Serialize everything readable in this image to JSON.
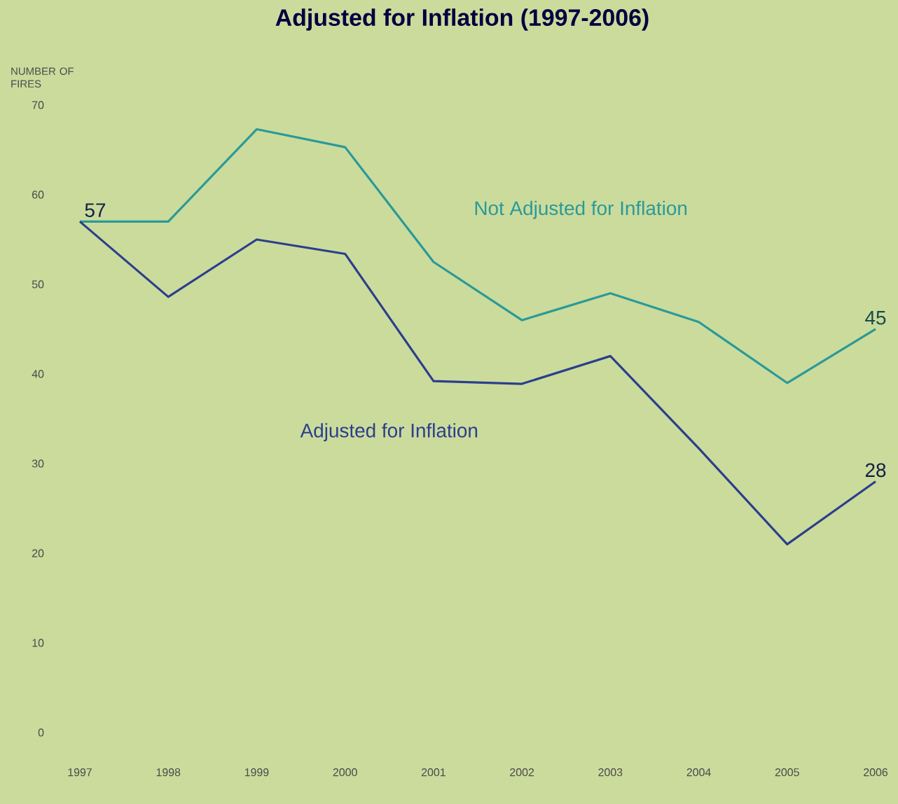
{
  "chart_data": {
    "type": "line",
    "title": "Adjusted for Inflation (1997-2006)",
    "ylabel": "NUMBER OF FIRES",
    "x": [
      1997,
      1998,
      1999,
      2000,
      2001,
      2002,
      2003,
      2004,
      2005,
      2006
    ],
    "series": [
      {
        "name": "Not Adjusted for Inflation",
        "color": "#2a9a98",
        "values": [
          57,
          57,
          67.3,
          65.3,
          52.5,
          46,
          49,
          45.8,
          39,
          45
        ],
        "value_labels": [
          null,
          null,
          null,
          null,
          null,
          null,
          null,
          null,
          null,
          "45"
        ]
      },
      {
        "name": "Adjusted for Inflation",
        "color": "#2b3f8c",
        "values": [
          57,
          48.6,
          55,
          53.4,
          39.2,
          38.9,
          42,
          31.7,
          21,
          28
        ],
        "value_labels": [
          "57",
          null,
          null,
          null,
          null,
          null,
          null,
          null,
          null,
          "28"
        ]
      }
    ],
    "xlim": [
      1997,
      2006
    ],
    "ylim": [
      0,
      70
    ],
    "xticks": [
      1997,
      1998,
      1999,
      2000,
      2001,
      2002,
      2003,
      2004,
      2005,
      2006
    ],
    "yticks": [
      0,
      10,
      20,
      30,
      40,
      50,
      60,
      70
    ],
    "marker": "none",
    "line_style": "solid"
  }
}
